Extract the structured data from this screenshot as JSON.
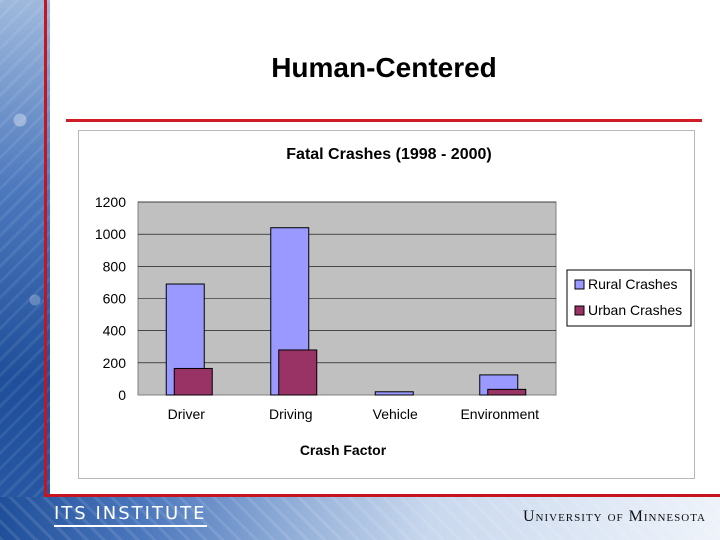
{
  "slide": {
    "title": "Human-Centered",
    "footer_left": "ITS INSTITUTE",
    "footer_right": "University of Minnesota"
  },
  "colors": {
    "rural": "#9999ff",
    "urban": "#993366",
    "plot_bg": "#c0c0c0",
    "accent_red": "#c8141e"
  },
  "chart_data": {
    "type": "bar",
    "title": "Fatal Crashes (1998 - 2000)",
    "xlabel": "Crash Factor",
    "ylabel": "",
    "categories": [
      "Driver",
      "Driving",
      "Vehicle",
      "Environment"
    ],
    "series": [
      {
        "name": "Rural Crashes",
        "values": [
          690,
          1040,
          20,
          125
        ]
      },
      {
        "name": "Urban Crashes",
        "values": [
          165,
          280,
          0,
          35
        ]
      }
    ],
    "ylim": [
      0,
      1200
    ],
    "yticks": [
      0,
      200,
      400,
      600,
      800,
      1000,
      1200
    ],
    "grid": true,
    "legend_position": "right"
  }
}
